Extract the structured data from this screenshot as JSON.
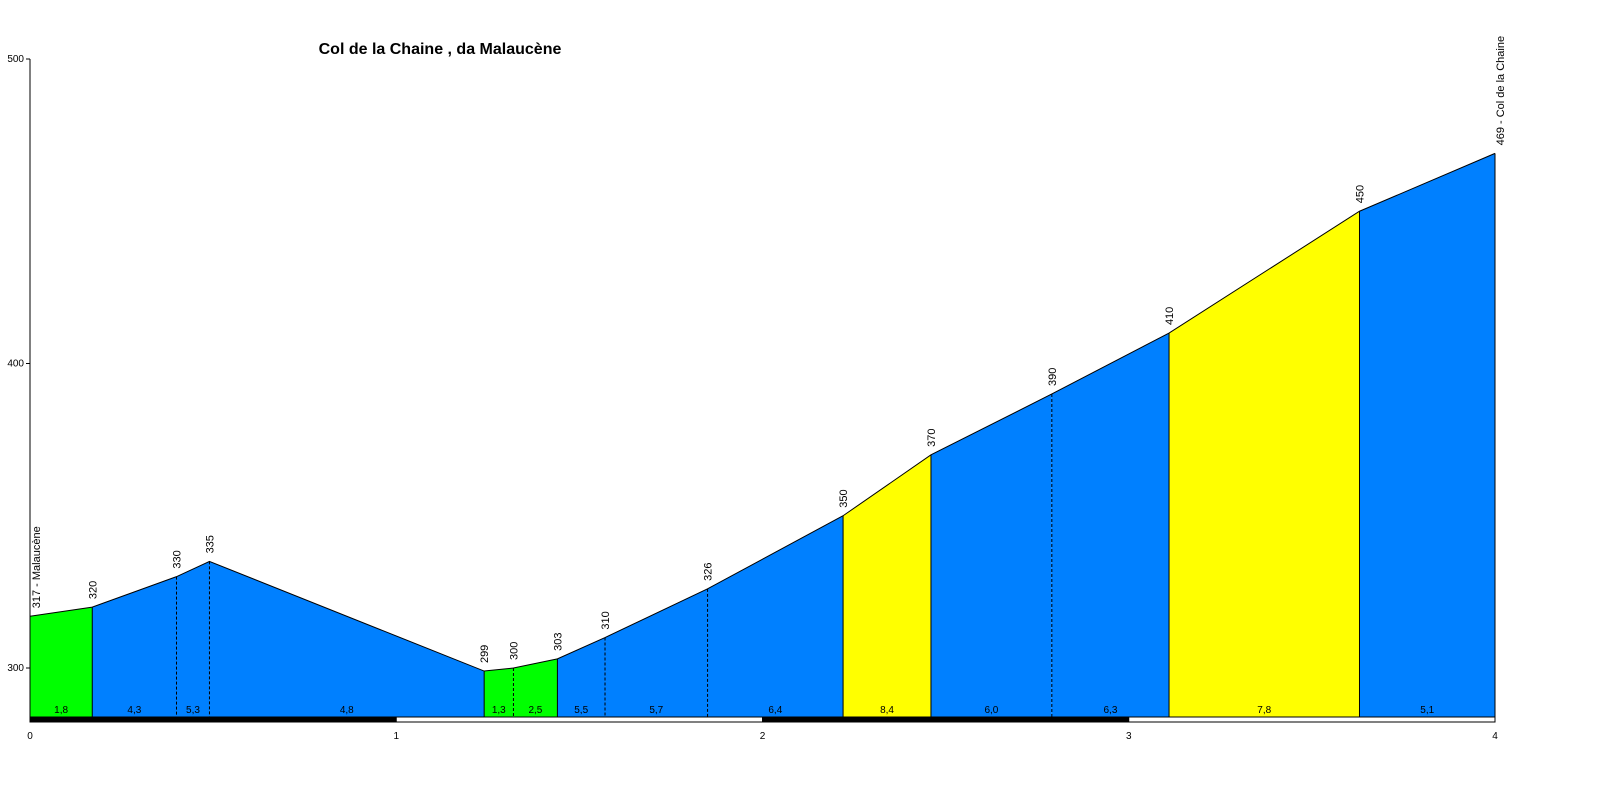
{
  "chart_data": {
    "type": "area",
    "title": "Col de la Chaine , da Malaucène",
    "xlim": [
      0,
      4
    ],
    "ylim": [
      280,
      500
    ],
    "x_ticks": [
      "0",
      "1",
      "2",
      "3",
      "4"
    ],
    "y_ticks": [
      "300",
      "400",
      "500"
    ],
    "points": [
      {
        "x": 0.0,
        "elev": 317,
        "label": "317 - Malaucène"
      },
      {
        "x": 0.17,
        "elev": 320,
        "label": "320"
      },
      {
        "x": 0.4,
        "elev": 330,
        "label": "330"
      },
      {
        "x": 0.49,
        "elev": 335,
        "label": "335"
      },
      {
        "x": 1.24,
        "elev": 299,
        "label": "299"
      },
      {
        "x": 1.32,
        "elev": 300,
        "label": "300"
      },
      {
        "x": 1.44,
        "elev": 303,
        "label": "303"
      },
      {
        "x": 1.57,
        "elev": 310,
        "label": "310"
      },
      {
        "x": 1.85,
        "elev": 326,
        "label": "326"
      },
      {
        "x": 2.22,
        "elev": 350,
        "label": "350"
      },
      {
        "x": 2.46,
        "elev": 370,
        "label": "370"
      },
      {
        "x": 2.79,
        "elev": 390,
        "label": "390"
      },
      {
        "x": 3.11,
        "elev": 410,
        "label": "410"
      },
      {
        "x": 3.63,
        "elev": 450,
        "label": "450"
      },
      {
        "x": 4.0,
        "elev": 469,
        "label": "469 - Col de la Chaine"
      }
    ],
    "segments": [
      {
        "gradient": "1,8",
        "color": "#00ff00"
      },
      {
        "gradient": "4,3",
        "color": "#0080ff"
      },
      {
        "gradient": "5,3",
        "color": "#0080ff"
      },
      {
        "gradient": "4,8",
        "color": "#0080ff"
      },
      {
        "gradient": "1,3",
        "color": "#00ff00"
      },
      {
        "gradient": "2,5",
        "color": "#00ff00"
      },
      {
        "gradient": "5,5",
        "color": "#0080ff"
      },
      {
        "gradient": "5,7",
        "color": "#0080ff"
      },
      {
        "gradient": "6,4",
        "color": "#0080ff"
      },
      {
        "gradient": "8,4",
        "color": "#ffff00"
      },
      {
        "gradient": "6,0",
        "color": "#0080ff"
      },
      {
        "gradient": "6,3",
        "color": "#0080ff"
      },
      {
        "gradient": "7,8",
        "color": "#ffff00"
      },
      {
        "gradient": "5,1",
        "color": "#0080ff"
      }
    ],
    "grid": false
  }
}
